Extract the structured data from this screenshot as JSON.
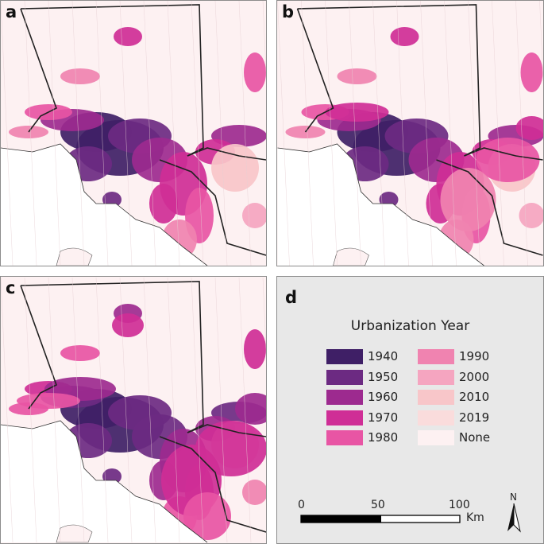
{
  "panels": [
    {
      "label": "a"
    },
    {
      "label": "b"
    },
    {
      "label": "c"
    }
  ],
  "legend": {
    "panel_label": "d",
    "title": "Urbanization Year",
    "left_items": [
      {
        "label": "1940",
        "color": "#3f1f66"
      },
      {
        "label": "1950",
        "color": "#6c2a82"
      },
      {
        "label": "1960",
        "color": "#9d2a8f"
      },
      {
        "label": "1970",
        "color": "#cf2e96"
      },
      {
        "label": "1980",
        "color": "#e855a4"
      }
    ],
    "right_items": [
      {
        "label": "1990",
        "color": "#f083b0"
      },
      {
        "label": "2000",
        "color": "#f5a5c0"
      },
      {
        "label": "2010",
        "color": "#f8c6c9"
      },
      {
        "label": "2019",
        "color": "#fadcdc"
      },
      {
        "label": "None",
        "color": "#fdf1f2"
      }
    ]
  },
  "scale_bar": {
    "ticks": [
      "0",
      "50",
      "100"
    ],
    "unit": "Km"
  },
  "north_arrow": {
    "label": "N",
    "icon": "north-arrow-icon"
  },
  "colors": {
    "ocean": "#ffffff",
    "land": "#fdf1f2",
    "border": "#222222"
  }
}
